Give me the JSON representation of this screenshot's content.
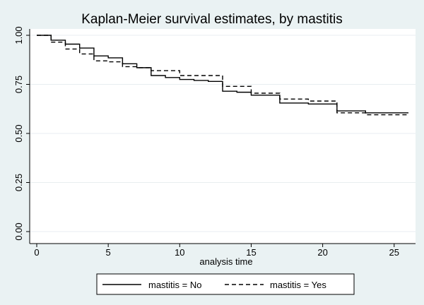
{
  "chart_data": {
    "type": "line",
    "step": true,
    "title": "Kaplan-Meier survival estimates, by mastitis",
    "xlabel": "analysis time",
    "ylabel": "",
    "xlim": [
      0,
      26
    ],
    "ylim": [
      0,
      1
    ],
    "x_ticks": [
      0,
      5,
      10,
      15,
      20,
      25
    ],
    "x_tick_labels": [
      "0",
      "5",
      "10",
      "15",
      "20",
      "25"
    ],
    "y_ticks": [
      0,
      0.25,
      0.5,
      0.75,
      1
    ],
    "y_tick_labels": [
      "0.00",
      "0.25",
      "0.50",
      "0.75",
      "1.00"
    ],
    "grid": "horizontal",
    "legend_position": "bottom",
    "series": [
      {
        "name": "mastitis = No",
        "line_style": "solid",
        "color": "#000000",
        "points": [
          [
            0,
            1.0
          ],
          [
            1,
            0.975
          ],
          [
            2,
            0.955
          ],
          [
            3,
            0.935
          ],
          [
            4,
            0.895
          ],
          [
            5,
            0.885
          ],
          [
            6,
            0.855
          ],
          [
            7,
            0.835
          ],
          [
            8,
            0.795
          ],
          [
            9,
            0.785
          ],
          [
            10,
            0.775
          ],
          [
            11,
            0.77
          ],
          [
            12,
            0.765
          ],
          [
            13,
            0.715
          ],
          [
            14,
            0.71
          ],
          [
            15,
            0.695
          ],
          [
            17,
            0.655
          ],
          [
            19,
            0.65
          ],
          [
            21,
            0.615
          ],
          [
            23,
            0.605
          ],
          [
            26,
            0.605
          ]
        ]
      },
      {
        "name": "mastitis = Yes",
        "line_style": "dashed",
        "color": "#000000",
        "points": [
          [
            0,
            1.0
          ],
          [
            1,
            0.965
          ],
          [
            2,
            0.93
          ],
          [
            3,
            0.905
          ],
          [
            4,
            0.87
          ],
          [
            5,
            0.865
          ],
          [
            6,
            0.84
          ],
          [
            7,
            0.835
          ],
          [
            8,
            0.82
          ],
          [
            10,
            0.795
          ],
          [
            13,
            0.74
          ],
          [
            15,
            0.705
          ],
          [
            17,
            0.675
          ],
          [
            19,
            0.665
          ],
          [
            21,
            0.605
          ],
          [
            23,
            0.595
          ],
          [
            26,
            0.59
          ]
        ]
      }
    ]
  },
  "colors": {
    "background": "#eaf2f3",
    "plot_background": "#ffffff",
    "grid": "#e8eef0",
    "line": "#000000"
  }
}
